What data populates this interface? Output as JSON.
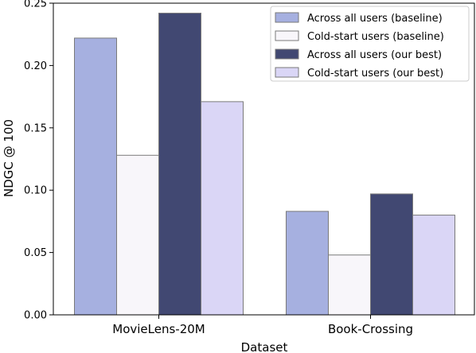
{
  "chart_data": {
    "type": "bar",
    "xlabel": "Dataset",
    "ylabel": "NDGC @ 100",
    "ylim": [
      0,
      0.25
    ],
    "yticks": [
      {
        "value": 0.0,
        "label": "0.00"
      },
      {
        "value": 0.05,
        "label": "0.05"
      },
      {
        "value": 0.1,
        "label": "0.10"
      },
      {
        "value": 0.15,
        "label": "0.15"
      },
      {
        "value": 0.2,
        "label": "0.20"
      },
      {
        "value": 0.25,
        "label": "0.25"
      }
    ],
    "categories": [
      "MovieLens-20M",
      "Book-Crossing"
    ],
    "series": [
      {
        "name": "Across all users (baseline)",
        "color": "#a6b0e0",
        "values": [
          0.222,
          0.083
        ]
      },
      {
        "name": "Cold-start users (baseline)",
        "color": "#f8f6fa",
        "values": [
          0.128,
          0.048
        ]
      },
      {
        "name": "Across all users (our best)",
        "color": "#414872",
        "values": [
          0.242,
          0.097
        ]
      },
      {
        "name": "Cold-start users (our best)",
        "color": "#dad6f6",
        "values": [
          0.171,
          0.08
        ]
      }
    ],
    "legend_position": "top-right",
    "grid": false
  }
}
